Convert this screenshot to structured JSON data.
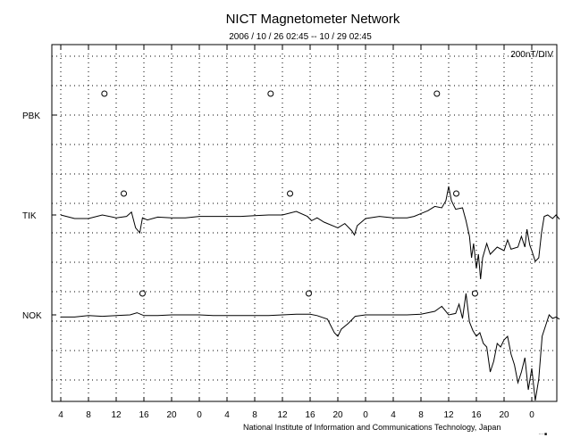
{
  "chart_data": {
    "type": "line",
    "title": "NICT Magnetometer Network",
    "subtitle": "2006 / 10 / 26   02:45 -- 10 / 29   02:45",
    "scale_label": "200nT/DIV",
    "credit": "National Institute of Information and Communications Technology, Japan",
    "corner_mark": "····■",
    "x_ticks": [
      "4",
      "8",
      "12",
      "16",
      "20",
      "0",
      "4",
      "8",
      "12",
      "16",
      "20",
      "0",
      "4",
      "8",
      "12",
      "16",
      "20",
      "0"
    ],
    "xlim_hours": [
      0,
      72
    ],
    "grid": true,
    "stations": [
      {
        "name": "PBK",
        "local_midnight_hours": [
          6.3,
          30.3,
          54.3
        ],
        "samples": []
      },
      {
        "name": "TIK",
        "local_midnight_hours": [
          9.1,
          33.1,
          57.1
        ],
        "samples": [
          [
            0,
            0
          ],
          [
            2,
            -5
          ],
          [
            4,
            -5
          ],
          [
            6,
            0
          ],
          [
            8,
            -4
          ],
          [
            9.5,
            -2
          ],
          [
            10.2,
            4
          ],
          [
            10.8,
            -18
          ],
          [
            11.4,
            -25
          ],
          [
            11.8,
            -4
          ],
          [
            12.5,
            -7
          ],
          [
            14,
            -3
          ],
          [
            16,
            -4
          ],
          [
            18,
            -4
          ],
          [
            20,
            -2
          ],
          [
            22,
            -2
          ],
          [
            24,
            -2
          ],
          [
            26,
            -2
          ],
          [
            28,
            -1
          ],
          [
            30,
            0
          ],
          [
            32,
            0
          ],
          [
            34,
            5
          ],
          [
            35.6,
            -2
          ],
          [
            36.2,
            -8
          ],
          [
            37,
            -4
          ],
          [
            38,
            -10
          ],
          [
            40,
            -18
          ],
          [
            41,
            -12
          ],
          [
            42,
            -22
          ],
          [
            42.4,
            -28
          ],
          [
            42.8,
            -15
          ],
          [
            44,
            -5
          ],
          [
            46,
            -2
          ],
          [
            48,
            -4
          ],
          [
            50,
            -4
          ],
          [
            51,
            -2
          ],
          [
            52,
            2
          ],
          [
            53,
            6
          ],
          [
            54,
            12
          ],
          [
            55,
            10
          ],
          [
            55.6,
            20
          ],
          [
            56,
            40
          ],
          [
            56.4,
            20
          ],
          [
            57,
            8
          ],
          [
            58,
            10
          ],
          [
            58.5,
            -8
          ],
          [
            59,
            -30
          ],
          [
            59.3,
            -60
          ],
          [
            59.6,
            -40
          ],
          [
            60,
            -75
          ],
          [
            60.3,
            -55
          ],
          [
            60.6,
            -90
          ],
          [
            60.9,
            -60
          ],
          [
            61.5,
            -40
          ],
          [
            62,
            -55
          ],
          [
            63,
            -45
          ],
          [
            64,
            -50
          ],
          [
            64.5,
            -35
          ],
          [
            65,
            -48
          ],
          [
            66,
            -45
          ],
          [
            66.5,
            -30
          ],
          [
            67,
            -45
          ],
          [
            67.3,
            -20
          ],
          [
            67.7,
            -42
          ],
          [
            68,
            -50
          ],
          [
            68.5,
            -65
          ],
          [
            69,
            -60
          ],
          [
            69.4,
            -25
          ],
          [
            69.8,
            -2
          ],
          [
            70.3,
            0
          ],
          [
            71,
            -5
          ],
          [
            71.5,
            0
          ],
          [
            72,
            -6
          ]
        ]
      },
      {
        "name": "NOK",
        "local_midnight_hours": [
          11.8,
          35.8,
          59.8
        ],
        "samples": [
          [
            0,
            -3
          ],
          [
            2,
            -3
          ],
          [
            4,
            -1
          ],
          [
            6,
            -2
          ],
          [
            8,
            -1
          ],
          [
            10,
            0
          ],
          [
            11,
            3
          ],
          [
            12,
            -1
          ],
          [
            14,
            -1
          ],
          [
            16,
            0
          ],
          [
            18,
            0
          ],
          [
            20,
            0
          ],
          [
            22,
            -1
          ],
          [
            24,
            -1
          ],
          [
            26,
            -1
          ],
          [
            28,
            -1
          ],
          [
            30,
            -1
          ],
          [
            32,
            0
          ],
          [
            34,
            1
          ],
          [
            36,
            1
          ],
          [
            37,
            -1
          ],
          [
            38.5,
            -6
          ],
          [
            39.5,
            -25
          ],
          [
            40,
            -30
          ],
          [
            40.5,
            -20
          ],
          [
            41.5,
            -12
          ],
          [
            42.5,
            -2
          ],
          [
            44,
            0
          ],
          [
            46,
            0
          ],
          [
            48,
            0
          ],
          [
            50,
            0
          ],
          [
            52,
            1
          ],
          [
            53,
            3
          ],
          [
            54,
            5
          ],
          [
            55,
            12
          ],
          [
            56,
            0
          ],
          [
            57,
            2
          ],
          [
            57.5,
            15
          ],
          [
            58,
            -5
          ],
          [
            58.5,
            30
          ],
          [
            59,
            -10
          ],
          [
            59.5,
            -22
          ],
          [
            60,
            -30
          ],
          [
            60.5,
            -25
          ],
          [
            61,
            -40
          ],
          [
            61.5,
            -45
          ],
          [
            62,
            -80
          ],
          [
            62.5,
            -65
          ],
          [
            63,
            -40
          ],
          [
            63.5,
            -45
          ],
          [
            64,
            -35
          ],
          [
            64.5,
            -30
          ],
          [
            65,
            -55
          ],
          [
            65.5,
            -70
          ],
          [
            66,
            -95
          ],
          [
            66.5,
            -80
          ],
          [
            67,
            -60
          ],
          [
            67.5,
            -105
          ],
          [
            68,
            -75
          ],
          [
            68.5,
            -120
          ],
          [
            69,
            -90
          ],
          [
            69.5,
            -30
          ],
          [
            70,
            -15
          ],
          [
            70.5,
            0
          ],
          [
            71,
            -5
          ],
          [
            71.5,
            -3
          ],
          [
            72,
            -6
          ]
        ]
      }
    ]
  }
}
